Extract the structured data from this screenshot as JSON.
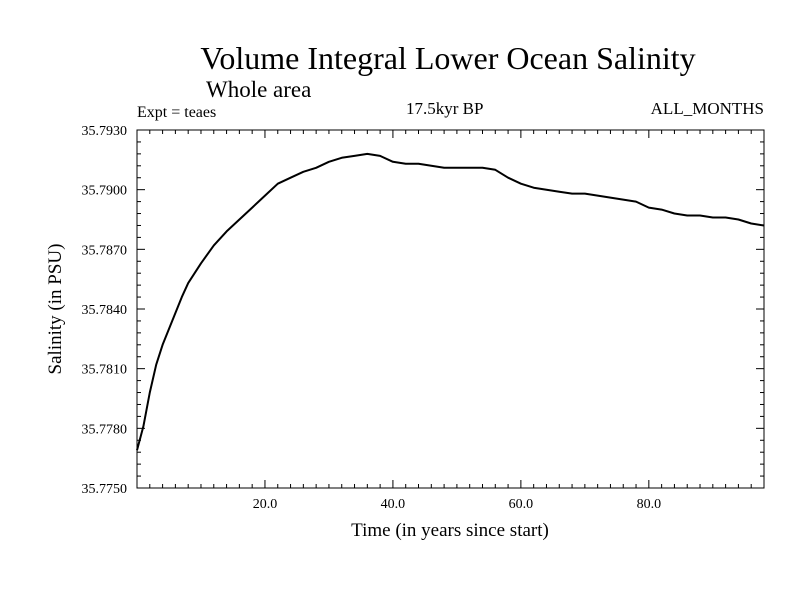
{
  "chart_data": {
    "type": "line",
    "title": "Volume Integral Lower Ocean Salinity",
    "subtitle": "Whole area",
    "annotations": {
      "left": "Expt = teaes",
      "center": "17.5kyr BP",
      "right": "ALL_MONTHS"
    },
    "xlabel": "Time (in years since start)",
    "ylabel": "Salinity (in PSU)",
    "xlim": [
      0,
      98
    ],
    "ylim": [
      35.775,
      35.793
    ],
    "xticks": [
      20,
      40,
      60,
      80
    ],
    "xtick_labels": [
      "20.0",
      "40.0",
      "60.0",
      "80.0"
    ],
    "yticks": [
      35.775,
      35.778,
      35.781,
      35.784,
      35.787,
      35.79,
      35.793
    ],
    "ytick_labels": [
      "35.7750",
      "35.7780",
      "35.7810",
      "35.7840",
      "35.7870",
      "35.7900",
      "35.7930"
    ],
    "series": [
      {
        "name": "Salinity",
        "x": [
          0,
          1,
          2,
          3,
          4,
          5,
          6,
          7,
          8,
          9,
          10,
          12,
          14,
          16,
          18,
          20,
          22,
          24,
          26,
          28,
          30,
          32,
          34,
          36,
          38,
          40,
          42,
          44,
          46,
          48,
          50,
          52,
          54,
          56,
          58,
          60,
          62,
          64,
          66,
          68,
          70,
          72,
          74,
          76,
          78,
          80,
          82,
          84,
          86,
          88,
          90,
          92,
          94,
          96,
          98
        ],
        "values": [
          35.7769,
          35.7781,
          35.7798,
          35.7812,
          35.7822,
          35.783,
          35.7838,
          35.7846,
          35.7853,
          35.7858,
          35.7863,
          35.7872,
          35.7879,
          35.7885,
          35.7891,
          35.7897,
          35.7903,
          35.7906,
          35.7909,
          35.7911,
          35.7914,
          35.7916,
          35.7917,
          35.7918,
          35.7917,
          35.7914,
          35.7913,
          35.7913,
          35.7912,
          35.7911,
          35.7911,
          35.7911,
          35.7911,
          35.791,
          35.7906,
          35.7903,
          35.7901,
          35.79,
          35.7899,
          35.7898,
          35.7898,
          35.7897,
          35.7896,
          35.7895,
          35.7894,
          35.7891,
          35.789,
          35.7888,
          35.7887,
          35.7887,
          35.7886,
          35.7886,
          35.7885,
          35.7883,
          35.7882
        ]
      }
    ]
  }
}
